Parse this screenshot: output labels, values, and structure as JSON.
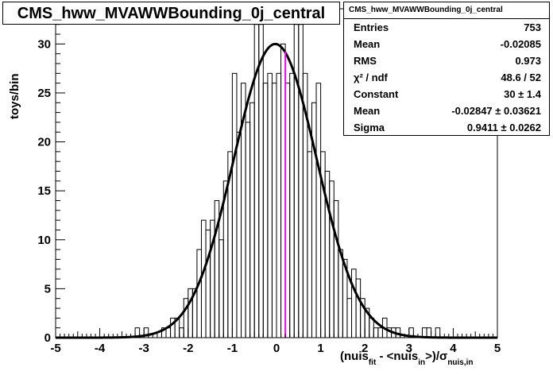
{
  "title": "CMS_hww_MVAWWBounding_0j_central",
  "stats": {
    "name": "CMS_hww_MVAWWBounding_0j_central",
    "rows": [
      {
        "label": "Entries",
        "value": "753"
      },
      {
        "label": "Mean",
        "value": "-0.02085"
      },
      {
        "label": "RMS",
        "value": "0.973"
      },
      {
        "label": "χ² / ndf",
        "value": "48.6 / 52"
      },
      {
        "label": "Constant",
        "value": "30 ± 1.4"
      },
      {
        "label": "Mean",
        "value": "-0.02847 ± 0.03621"
      },
      {
        "label": "Sigma",
        "value": "0.9411 ± 0.0262"
      }
    ]
  },
  "axes": {
    "ylabel": "toys/bin",
    "xlabel_parts": [
      "(nuis",
      "fit",
      " - <nuis",
      "in",
      ">)/σ",
      "nuis,in"
    ]
  },
  "colors": {
    "histogram": "#000000",
    "fit": "#000000",
    "marker_line": "#ff00ff"
  },
  "chart_data": {
    "type": "bar",
    "title": "CMS_hww_MVAWWBounding_0j_central",
    "xlabel": "(nuis_fit - <nuis_in>)/σ_nuis,in",
    "ylabel": "toys/bin",
    "xlim": [
      -5,
      5
    ],
    "ylim": [
      0,
      33.6
    ],
    "xticks": [
      -5,
      -4,
      -3,
      -2,
      -1,
      0,
      1,
      2,
      3,
      4,
      5
    ],
    "yticks": [
      0,
      5,
      10,
      15,
      20,
      25,
      30
    ],
    "bin_width": 0.1,
    "bins": [
      {
        "x": -3.2,
        "y": 1
      },
      {
        "x": -3.0,
        "y": 1
      },
      {
        "x": -2.6,
        "y": 1
      },
      {
        "x": -2.5,
        "y": 1
      },
      {
        "x": -2.4,
        "y": 2
      },
      {
        "x": -2.3,
        "y": 2
      },
      {
        "x": -2.2,
        "y": 1
      },
      {
        "x": -2.1,
        "y": 4
      },
      {
        "x": -2.0,
        "y": 5
      },
      {
        "x": -1.9,
        "y": 5
      },
      {
        "x": -1.8,
        "y": 9
      },
      {
        "x": -1.7,
        "y": 12
      },
      {
        "x": -1.6,
        "y": 11
      },
      {
        "x": -1.5,
        "y": 12
      },
      {
        "x": -1.4,
        "y": 14
      },
      {
        "x": -1.3,
        "y": 10
      },
      {
        "x": -1.2,
        "y": 16
      },
      {
        "x": -1.1,
        "y": 19
      },
      {
        "x": -1.0,
        "y": 27
      },
      {
        "x": -0.9,
        "y": 21
      },
      {
        "x": -0.8,
        "y": 26
      },
      {
        "x": -0.7,
        "y": 22
      },
      {
        "x": -0.6,
        "y": 24
      },
      {
        "x": -0.5,
        "y": 32
      },
      {
        "x": -0.4,
        "y": 32
      },
      {
        "x": -0.3,
        "y": 26
      },
      {
        "x": -0.2,
        "y": 27
      },
      {
        "x": -0.1,
        "y": 26
      },
      {
        "x": 0.0,
        "y": 27
      },
      {
        "x": 0.1,
        "y": 30
      },
      {
        "x": 0.2,
        "y": 26
      },
      {
        "x": 0.3,
        "y": 27
      },
      {
        "x": 0.4,
        "y": 32
      },
      {
        "x": 0.5,
        "y": 32
      },
      {
        "x": 0.6,
        "y": 27
      },
      {
        "x": 0.7,
        "y": 19
      },
      {
        "x": 0.8,
        "y": 24
      },
      {
        "x": 0.9,
        "y": 26
      },
      {
        "x": 1.0,
        "y": 19
      },
      {
        "x": 1.1,
        "y": 17
      },
      {
        "x": 1.2,
        "y": 16
      },
      {
        "x": 1.3,
        "y": 14
      },
      {
        "x": 1.4,
        "y": 9
      },
      {
        "x": 1.5,
        "y": 8
      },
      {
        "x": 1.6,
        "y": 4
      },
      {
        "x": 1.7,
        "y": 7
      },
      {
        "x": 1.8,
        "y": 6
      },
      {
        "x": 1.9,
        "y": 4
      },
      {
        "x": 2.0,
        "y": 3
      },
      {
        "x": 2.1,
        "y": 2
      },
      {
        "x": 2.2,
        "y": 1
      },
      {
        "x": 2.3,
        "y": 1
      },
      {
        "x": 2.4,
        "y": 2
      },
      {
        "x": 2.5,
        "y": 1
      },
      {
        "x": 2.6,
        "y": 1
      },
      {
        "x": 2.7,
        "y": 1
      },
      {
        "x": 3.0,
        "y": 1
      },
      {
        "x": 3.3,
        "y": 1
      },
      {
        "x": 3.4,
        "y": 1
      },
      {
        "x": 3.6,
        "y": 1
      }
    ],
    "fit": {
      "function": "gaus",
      "constant": 30,
      "mean": -0.02847,
      "sigma": 0.9411
    },
    "vertical_line_x": 0.2,
    "grid": false
  }
}
